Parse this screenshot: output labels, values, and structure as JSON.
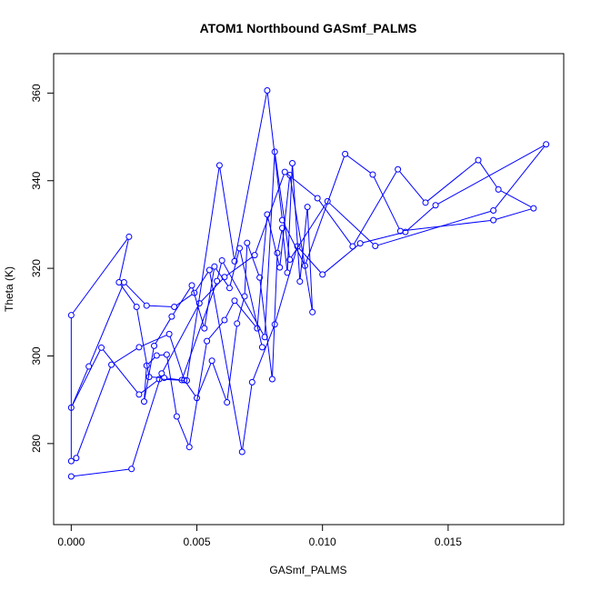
{
  "chart_data": {
    "type": "line",
    "title": "ATOM1 Northbound GASmf_PALMS",
    "xlabel": "GASmf_PALMS",
    "ylabel": "Theta (K)",
    "xlim": [
      -0.0007,
      0.0196
    ],
    "ylim": [
      261.5,
      369
    ],
    "x_ticks": [
      0.0,
      0.005,
      0.01,
      0.015
    ],
    "x_tick_labels": [
      "0.000",
      "0.005",
      "0.010",
      "0.015"
    ],
    "y_ticks": [
      280,
      300,
      320,
      340,
      360
    ],
    "y_tick_labels": [
      "280",
      "300",
      "320",
      "340",
      "360"
    ],
    "grid": false,
    "marker": "open circle",
    "series_color": "#0000ff",
    "x": [
      0.0,
      0.0024,
      0.0036,
      0.0051,
      0.0061,
      0.0073,
      0.0085,
      0.0098,
      0.0112,
      0.013,
      0.0141,
      0.0162,
      0.017,
      0.0184,
      0.0168,
      0.0131,
      0.012,
      0.0109,
      0.0093,
      0.0084,
      0.0078,
      0.0065,
      0.0059,
      0.0046,
      0.0035,
      0.0027,
      0.0012,
      0.0,
      0.0007,
      0.0021,
      0.003,
      0.0041,
      0.0049,
      0.0055,
      0.0068,
      0.0072,
      0.0081,
      0.009,
      0.01,
      0.0115,
      0.0133,
      0.0145,
      0.0189,
      0.0168,
      0.0121,
      0.0102,
      0.0087,
      0.0081,
      0.0077,
      0.006,
      0.0058,
      0.0044,
      0.0037,
      0.0031,
      0.0026,
      0.0019,
      0.0023,
      0.0,
      0.0,
      0.0002,
      0.0016,
      0.0027,
      0.0039,
      0.0045,
      0.005,
      0.0056,
      0.0062,
      0.0066,
      0.0069,
      0.007,
      0.0075,
      0.008,
      0.0082,
      0.0084,
      0.0086,
      0.0088,
      0.0091,
      0.0094,
      0.0096,
      0.0087,
      0.0083,
      0.0078,
      0.0074,
      0.0065,
      0.0061,
      0.0054,
      0.0047,
      0.0042,
      0.0038,
      0.0034,
      0.003,
      0.0029,
      0.0033,
      0.004,
      0.0048,
      0.0053,
      0.0057,
      0.0063,
      0.0067,
      0.0076
    ],
    "y": [
      272.5,
      274.2,
      296.0,
      312.0,
      318.0,
      323.0,
      342.0,
      336.0,
      325.0,
      342.6,
      335.0,
      344.7,
      338.0,
      333.7,
      331.0,
      328.5,
      341.4,
      346.1,
      320.6,
      331.0,
      360.6,
      321.6,
      343.5,
      294.4,
      294.7,
      291.2,
      301.9,
      288.2,
      297.6,
      316.8,
      311.5,
      311.2,
      314.4,
      319.6,
      278.1,
      294.0,
      307.2,
      325.0,
      318.6,
      325.7,
      328.3,
      334.4,
      348.3,
      333.2,
      325.1,
      335.3,
      322.0,
      346.6,
      304.3,
      321.8,
      317.1,
      294.5,
      295.0,
      295.2,
      311.2,
      316.8,
      327.2,
      309.3,
      276.0,
      276.7,
      298.0,
      302.0,
      305.0,
      294.5,
      290.4,
      298.9,
      289.4,
      307.4,
      313.6,
      325.8,
      317.9,
      294.7,
      323.5,
      329.2,
      319.0,
      344.0,
      317.0,
      334.0,
      310.0,
      341.3,
      320.2,
      332.3,
      306.3,
      312.6,
      308.2,
      303.4,
      279.2,
      286.2,
      300.3,
      300.1,
      297.8,
      289.6,
      302.3,
      309.0,
      316.1,
      306.3,
      320.4,
      315.5,
      324.6,
      302.0
    ]
  }
}
